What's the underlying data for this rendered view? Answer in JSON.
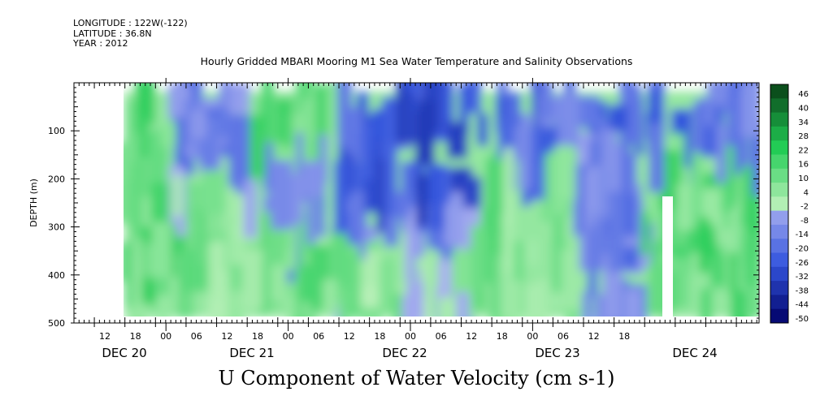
{
  "meta": {
    "longitude": "LONGITUDE : 122W(-122)",
    "latitude": "LATITUDE : 36.8N",
    "year": "YEAR : 2012"
  },
  "title": "Hourly Gridded MBARI Mooring M1 Sea Water Temperature and Salinity Observations",
  "footer": "U Component of Water Velocity (cm s-1)",
  "colors": {
    "negative_dark": "#000066",
    "negative_mid": "#3355dd",
    "negative_light": "#aab0f0",
    "positive_light": "#b8f0b8",
    "positive_mid": "#22cc55",
    "positive_dark": "#0a4a1a"
  },
  "chart_data": {
    "type": "heatmap",
    "ylabel": "DEPTH (m)",
    "y_ticks": [
      100,
      200,
      300,
      400,
      500
    ],
    "ylim": [
      0,
      500
    ],
    "y_inverted": true,
    "x_hour_ticks": [
      "12",
      "18",
      "00",
      "06",
      "12",
      "18",
      "00",
      "06",
      "12",
      "18",
      "00",
      "06",
      "12",
      "18",
      "00",
      "06",
      "12",
      "18"
    ],
    "x_day_labels": [
      "DEC 20",
      "DEC 21",
      "DEC 22",
      "DEC 23",
      "DEC 24"
    ],
    "colorbar": {
      "ticks": [
        46,
        40,
        34,
        28,
        22,
        16,
        10,
        4,
        -2,
        -8,
        -14,
        -20,
        -26,
        -32,
        -38,
        -44,
        -50
      ],
      "range": [
        -50,
        50
      ]
    },
    "series": [
      {
        "name": "U Component of Water Velocity",
        "segments": [
          {
            "time": "DEC 20 12-18",
            "range_cm_s": [
              0,
              22
            ]
          },
          {
            "time": "DEC 21 00-12",
            "range_cm_s": [
              -20,
              16
            ]
          },
          {
            "time": "DEC 22 00-18",
            "range_cm_s": [
              -26,
              10
            ]
          },
          {
            "time": "DEC 23 00-12",
            "range_cm_s": [
              -20,
              16
            ]
          },
          {
            "time": "DEC 24 00-18",
            "range_cm_s": [
              -20,
              22
            ]
          }
        ]
      }
    ]
  }
}
